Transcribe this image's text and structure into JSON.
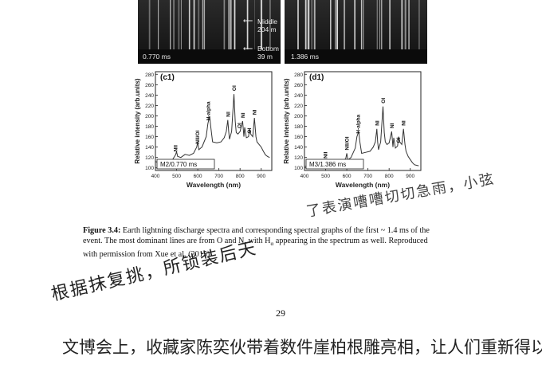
{
  "spectra_images": [
    {
      "time_label": "0.770 ms",
      "markers": [
        {
          "label_lines": [
            "Middle",
            "204 m"
          ]
        },
        {
          "label_lines": [
            "Bottom",
            "39 m"
          ]
        }
      ]
    },
    {
      "time_label": "1.386 ms"
    }
  ],
  "chart_data": [
    {
      "type": "line",
      "panel_label": "(c1)",
      "box_label": "M2/0.770 ms",
      "xlabel": "Wavelength (nm)",
      "ylabel": "Relative intensity (arb.units)",
      "xlim": [
        400,
        950
      ],
      "ylim": [
        95,
        285
      ],
      "xticks": [
        400,
        500,
        600,
        700,
        800,
        900
      ],
      "yticks": [
        100,
        120,
        140,
        160,
        180,
        200,
        220,
        240,
        260,
        280
      ],
      "x": [
        400,
        420,
        440,
        460,
        480,
        495,
        500,
        505,
        520,
        540,
        560,
        580,
        595,
        600,
        605,
        620,
        640,
        648,
        656,
        662,
        670,
        690,
        710,
        725,
        735,
        742,
        746,
        750,
        760,
        771,
        777,
        782,
        790,
        800,
        812,
        818,
        822,
        830,
        840,
        845,
        850,
        860,
        868,
        875,
        880,
        890,
        900,
        910,
        920,
        930,
        940
      ],
      "y": [
        112,
        110,
        114,
        112,
        115,
        125,
        131,
        122,
        120,
        126,
        124,
        128,
        140,
        150,
        135,
        140,
        160,
        185,
        200,
        178,
        150,
        148,
        150,
        158,
        170,
        192,
        172,
        155,
        170,
        242,
        190,
        168,
        165,
        170,
        190,
        160,
        178,
        158,
        160,
        175,
        165,
        160,
        196,
        160,
        150,
        145,
        140,
        132,
        125,
        122,
        120
      ],
      "annotations": [
        {
          "text": "NII",
          "x": 495
        },
        {
          "text": "NII/OI",
          "x": 597
        },
        {
          "text": "H-alpha",
          "x": 648
        },
        {
          "text": "NI",
          "x": 742
        },
        {
          "text": "OI",
          "x": 771
        },
        {
          "text": "OI",
          "x": 796
        },
        {
          "text": "NI",
          "x": 812
        },
        {
          "text": "OI",
          "x": 842
        },
        {
          "text": "NI",
          "x": 868
        }
      ]
    },
    {
      "type": "line",
      "panel_label": "(d1)",
      "box_label": "M3/1.386 ms",
      "xlabel": "Wavelength (nm)",
      "ylabel": "Relative intensity (arb.units)",
      "xlim": [
        400,
        950
      ],
      "ylim": [
        95,
        285
      ],
      "xticks": [
        400,
        500,
        600,
        700,
        800,
        900
      ],
      "yticks": [
        100,
        120,
        140,
        160,
        180,
        200,
        220,
        240,
        260,
        280
      ],
      "x": [
        400,
        420,
        440,
        460,
        480,
        495,
        500,
        505,
        520,
        540,
        560,
        580,
        595,
        600,
        605,
        620,
        640,
        648,
        656,
        662,
        670,
        690,
        710,
        725,
        735,
        742,
        746,
        750,
        760,
        771,
        777,
        782,
        790,
        800,
        812,
        818,
        822,
        830,
        840,
        845,
        850,
        860,
        868,
        875,
        880,
        890,
        900,
        910,
        920,
        930,
        940
      ],
      "y": [
        103,
        102,
        104,
        103,
        105,
        108,
        112,
        106,
        105,
        108,
        107,
        112,
        118,
        128,
        115,
        120,
        138,
        160,
        170,
        150,
        128,
        130,
        132,
        140,
        150,
        175,
        150,
        135,
        150,
        218,
        168,
        150,
        145,
        148,
        170,
        140,
        158,
        138,
        142,
        160,
        150,
        145,
        175,
        145,
        132,
        122,
        116,
        110,
        106,
        105,
        104
      ],
      "annotations": [
        {
          "text": "NII",
          "x": 498
        },
        {
          "text": "NII/OI",
          "x": 600
        },
        {
          "text": "H-alpha",
          "x": 652
        },
        {
          "text": "NI",
          "x": 742
        },
        {
          "text": "OI",
          "x": 771
        },
        {
          "text": "NI",
          "x": 812
        },
        {
          "text": "OI",
          "x": 842
        },
        {
          "text": "NI",
          "x": 868
        }
      ]
    }
  ],
  "caption": {
    "label": "Figure 3.4:",
    "line1": " Earth lightning discharge spectra and corresponding spectral graphs of the first ~ 1.4 ms of the",
    "line2": "event.  The most dominant lines are from O and N, with H",
    "line2_sub": "α",
    "line2_end": " appearing in the spectrum as well.  Reproduced",
    "line3": "with permission from Xue et al. (2015)."
  },
  "page_number": "29",
  "handwriting": {
    "overlay_right": "了表演嘈嘈切切急雨，小弦",
    "line_middle": "根据抹复挑，所锁装后天",
    "line_bottom": "文博会上，收藏家陈奕伙带着数件崖柏根雕亮相，让人们重新得以"
  }
}
